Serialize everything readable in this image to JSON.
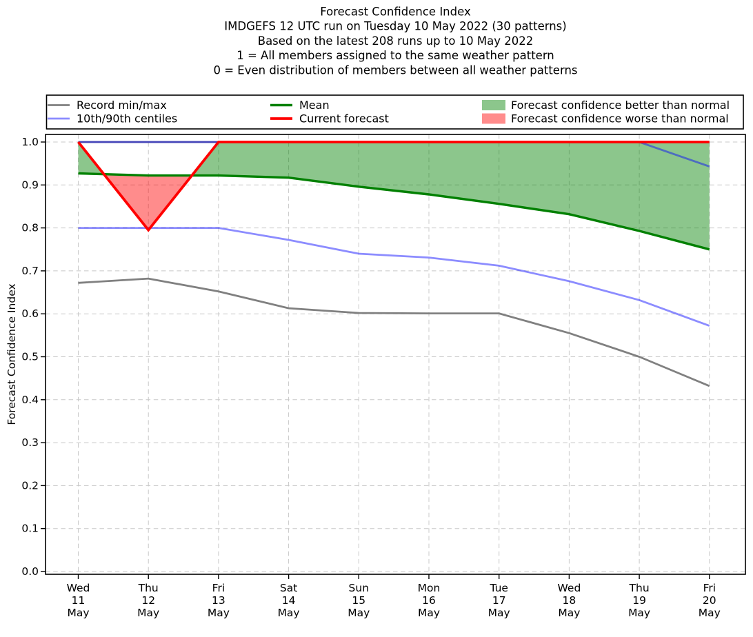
{
  "chart_data": {
    "type": "line",
    "title_lines": [
      "Forecast Confidence Index",
      "IMDGEFS 12 UTC run on Tuesday 10 May 2022 (30 patterns)",
      "Based on the latest 208 runs up to 10 May 2022",
      "1 = All members assigned to the same weather pattern",
      "0 = Even distribution of members between all weather patterns"
    ],
    "ylabel": "Forecast Confidence Index",
    "ylim": [
      0.0,
      1.0
    ],
    "yticks": [
      "0.0",
      "0.1",
      "0.2",
      "0.3",
      "0.4",
      "0.5",
      "0.6",
      "0.7",
      "0.8",
      "0.9",
      "1.0"
    ],
    "x_categories": [
      [
        "Wed",
        "11",
        "May"
      ],
      [
        "Thu",
        "12",
        "May"
      ],
      [
        "Fri",
        "13",
        "May"
      ],
      [
        "Sat",
        "14",
        "May"
      ],
      [
        "Sun",
        "15",
        "May"
      ],
      [
        "Mon",
        "16",
        "May"
      ],
      [
        "Tue",
        "17",
        "May"
      ],
      [
        "Wed",
        "18",
        "May"
      ],
      [
        "Thu",
        "19",
        "May"
      ],
      [
        "Fri",
        "20",
        "May"
      ]
    ],
    "grid": true,
    "series": [
      {
        "name": "record_max",
        "legend": "Record min/max",
        "color": "grey",
        "values": [
          1.0,
          1.0,
          1.0,
          1.0,
          1.0,
          1.0,
          1.0,
          1.0,
          1.0,
          1.0
        ]
      },
      {
        "name": "record_min",
        "legend": "Record min/max",
        "color": "grey",
        "values": [
          0.672,
          0.682,
          0.652,
          0.613,
          0.602,
          0.601,
          0.601,
          0.555,
          0.5,
          0.432
        ]
      },
      {
        "name": "centile_90",
        "legend": "10th/90th centiles",
        "color": "blue",
        "values": [
          1.0,
          1.0,
          1.0,
          1.0,
          1.0,
          1.0,
          1.0,
          1.0,
          1.0,
          0.943
        ]
      },
      {
        "name": "centile_10",
        "legend": "10th/90th centiles",
        "color": "blue",
        "values": [
          0.8,
          0.8,
          0.8,
          0.772,
          0.74,
          0.731,
          0.712,
          0.676,
          0.632,
          0.572
        ]
      },
      {
        "name": "mean",
        "legend": "Mean",
        "color": "green",
        "values": [
          0.927,
          0.922,
          0.922,
          0.917,
          0.896,
          0.878,
          0.856,
          0.832,
          0.793,
          0.75
        ]
      },
      {
        "name": "current",
        "legend": "Current forecast",
        "color": "red",
        "values": [
          1.0,
          0.795,
          1.0,
          1.0,
          1.0,
          1.0,
          1.0,
          1.0,
          1.0,
          1.0
        ]
      }
    ],
    "fills": [
      {
        "name": "confidence_better",
        "between": [
          "current",
          "mean"
        ],
        "where": "current>mean",
        "color": "fill_green"
      },
      {
        "name": "confidence_worse",
        "between": [
          "current",
          "mean"
        ],
        "where": "current<mean",
        "color": "fill_red"
      }
    ],
    "legend": [
      {
        "label": "Record min/max",
        "swatch": "line",
        "color": "grey"
      },
      {
        "label": "10th/90th centiles",
        "swatch": "line",
        "color": "blue"
      },
      {
        "label": "Mean",
        "swatch": "line",
        "color": "green"
      },
      {
        "label": "Current forecast",
        "swatch": "line",
        "color": "red"
      },
      {
        "label": "Forecast confidence better than normal",
        "swatch": "patch",
        "color": "fill_green"
      },
      {
        "label": "Forecast confidence worse than normal",
        "swatch": "patch",
        "color": "fill_red"
      }
    ],
    "colors": {
      "grey": "#808080",
      "blue": "rgba(0,0,255,0.45)",
      "green": "#008000",
      "red": "#ff0000",
      "fill_green": "rgba(0,128,0,0.45)",
      "fill_red": "rgba(255,0,0,0.45)",
      "grid": "#c8c8c8"
    }
  }
}
